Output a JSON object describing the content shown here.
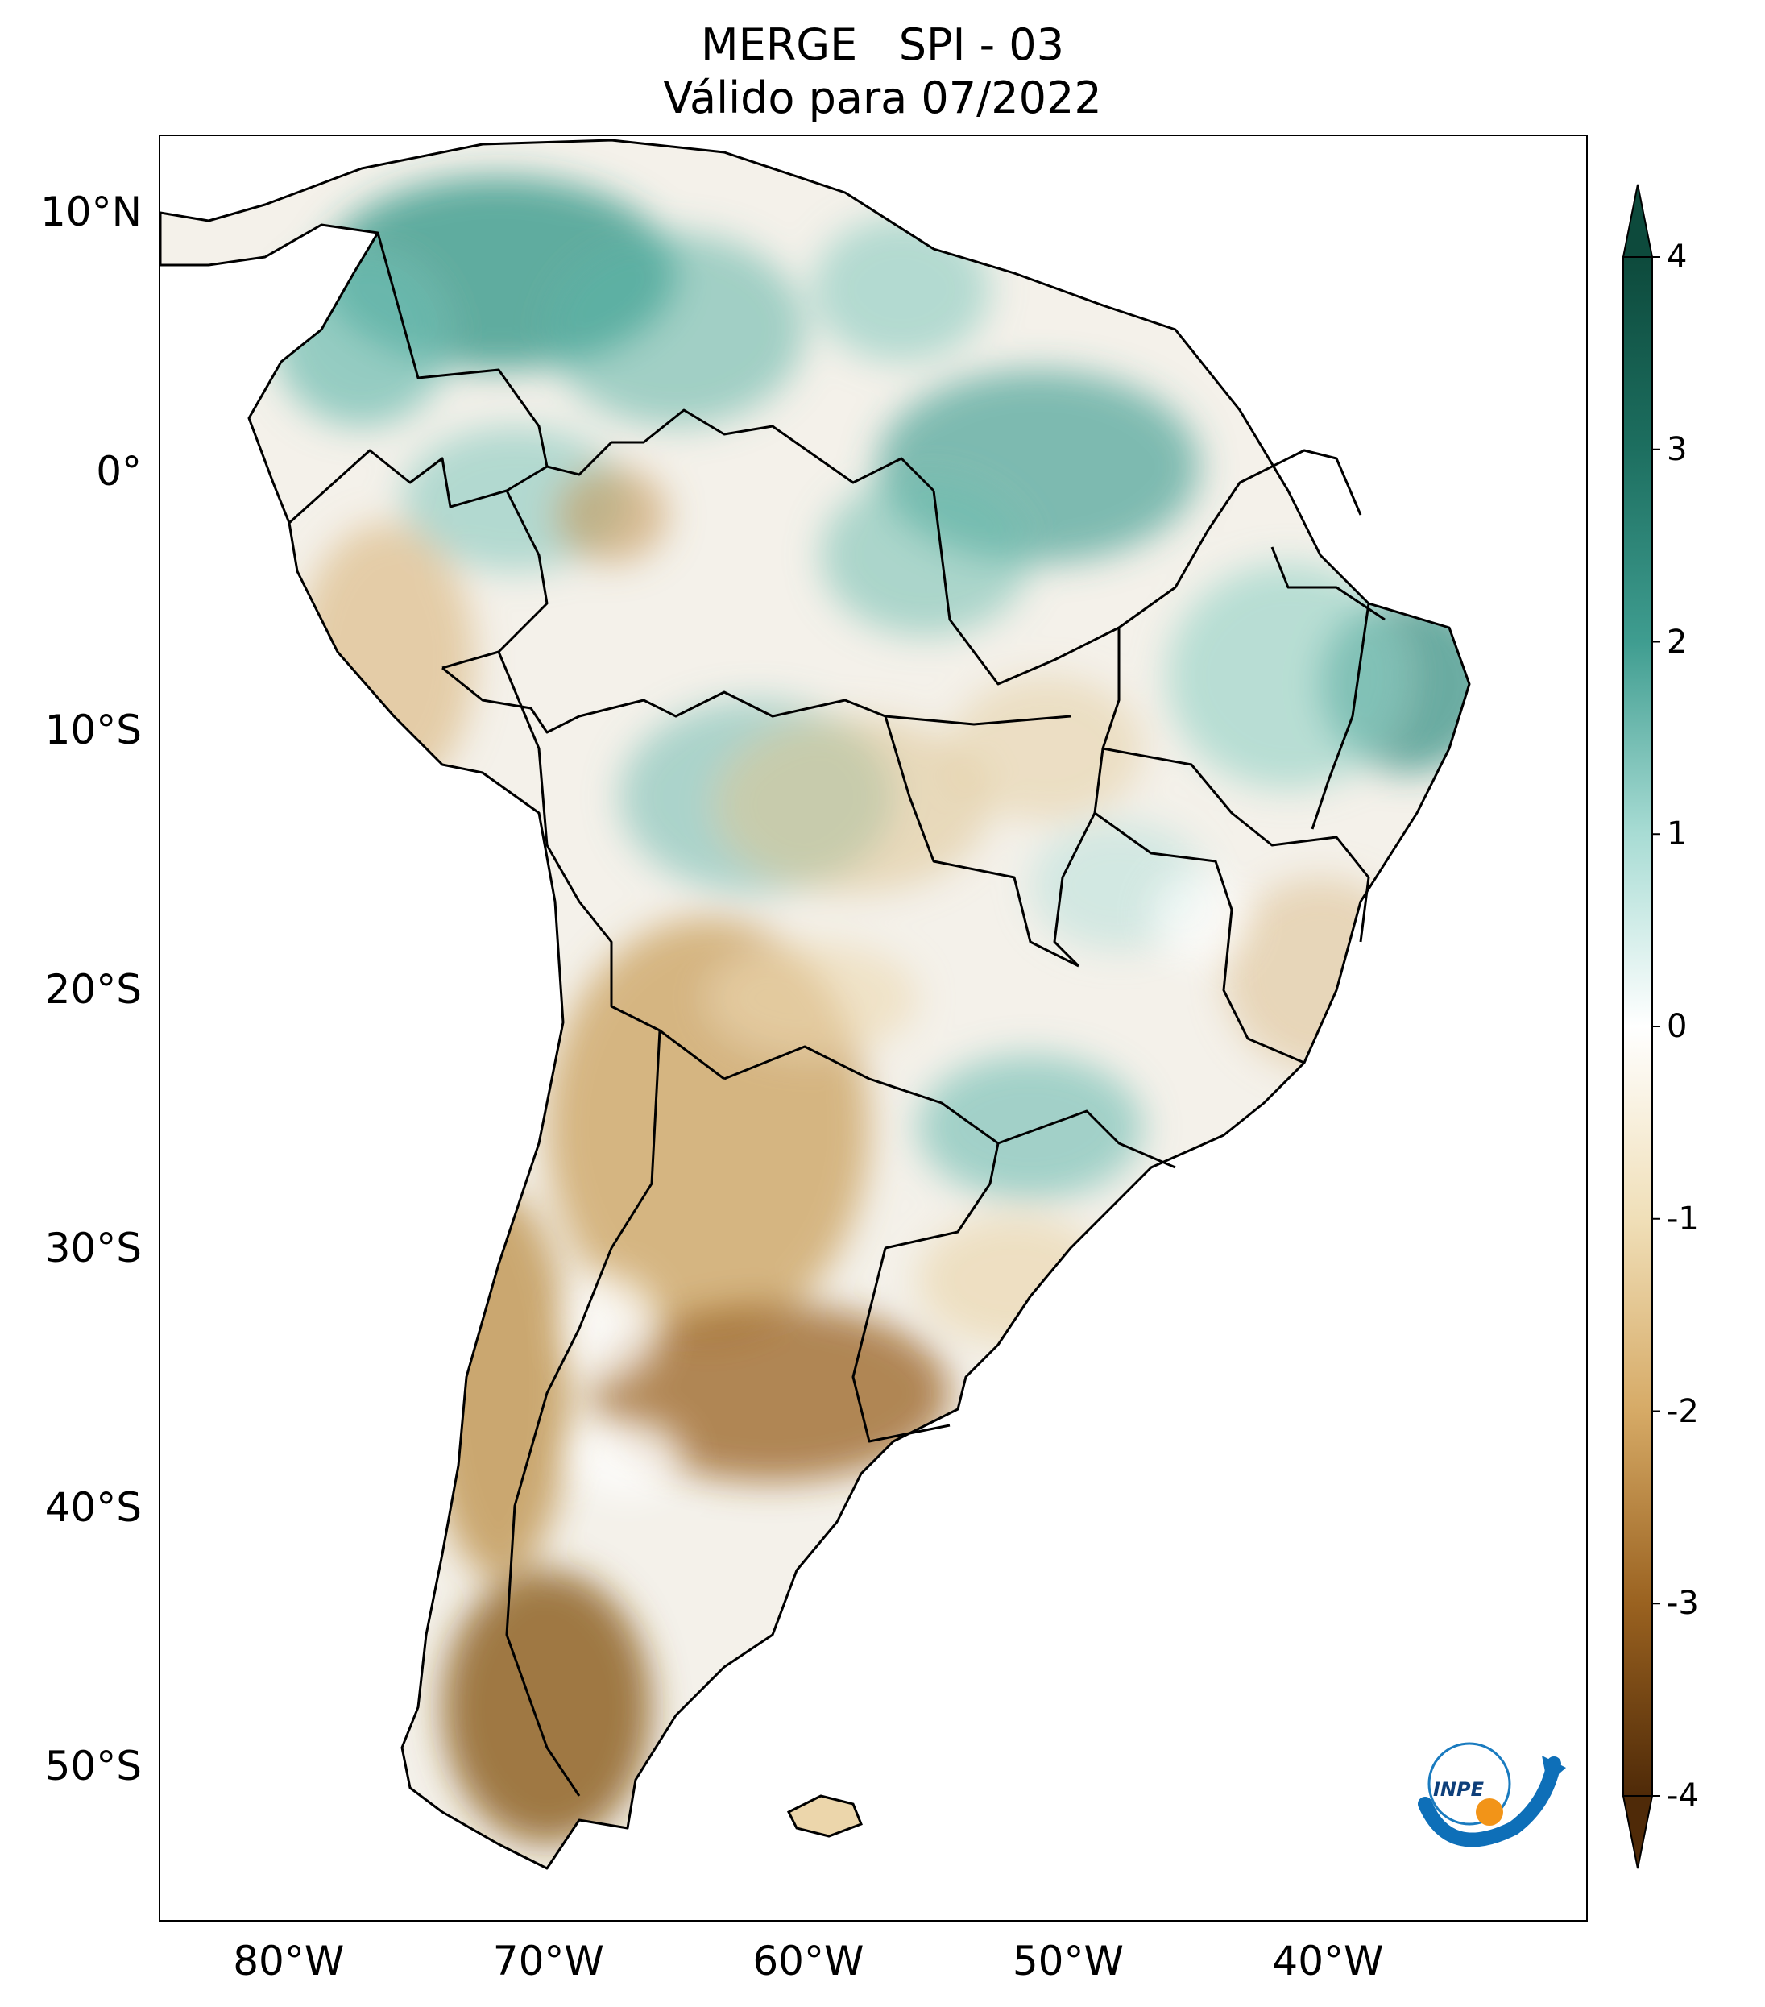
{
  "title": {
    "line1": "MERGE   SPI - 03",
    "line2": "Válido para 07/2022"
  },
  "axes": {
    "lat_labels": [
      {
        "text": "10°N",
        "value": 10
      },
      {
        "text": "0°",
        "value": 0
      },
      {
        "text": "10°S",
        "value": -10
      },
      {
        "text": "20°S",
        "value": -20
      },
      {
        "text": "30°S",
        "value": -30
      },
      {
        "text": "40°S",
        "value": -40
      },
      {
        "text": "50°S",
        "value": -50
      }
    ],
    "lon_labels": [
      {
        "text": "80°W",
        "value": -80
      },
      {
        "text": "70°W",
        "value": -70
      },
      {
        "text": "60°W",
        "value": -60
      },
      {
        "text": "50°W",
        "value": -50
      },
      {
        "text": "40°W",
        "value": -40
      }
    ],
    "lon_range": [
      -85,
      -30
    ],
    "lat_range": [
      -56,
      13
    ]
  },
  "colorbar": {
    "ticks": [
      {
        "label": "4",
        "value": 4
      },
      {
        "label": "3",
        "value": 3
      },
      {
        "label": "2",
        "value": 2
      },
      {
        "label": "1",
        "value": 1
      },
      {
        "label": "0",
        "value": 0
      },
      {
        "label": "-1",
        "value": -1
      },
      {
        "label": "-2",
        "value": -2
      },
      {
        "label": "-3",
        "value": -3
      },
      {
        "label": "-4",
        "value": -4
      }
    ],
    "colors": {
      "wet_max": "#0d4a3c",
      "wet": "#2e8f84",
      "wet_light": "#a8dcd4",
      "neutral": "#ffffff",
      "dry_light": "#f0dfb8",
      "dry": "#c28a3a",
      "dry_max": "#4f2a08"
    }
  },
  "logo": {
    "text": "INPE"
  }
}
